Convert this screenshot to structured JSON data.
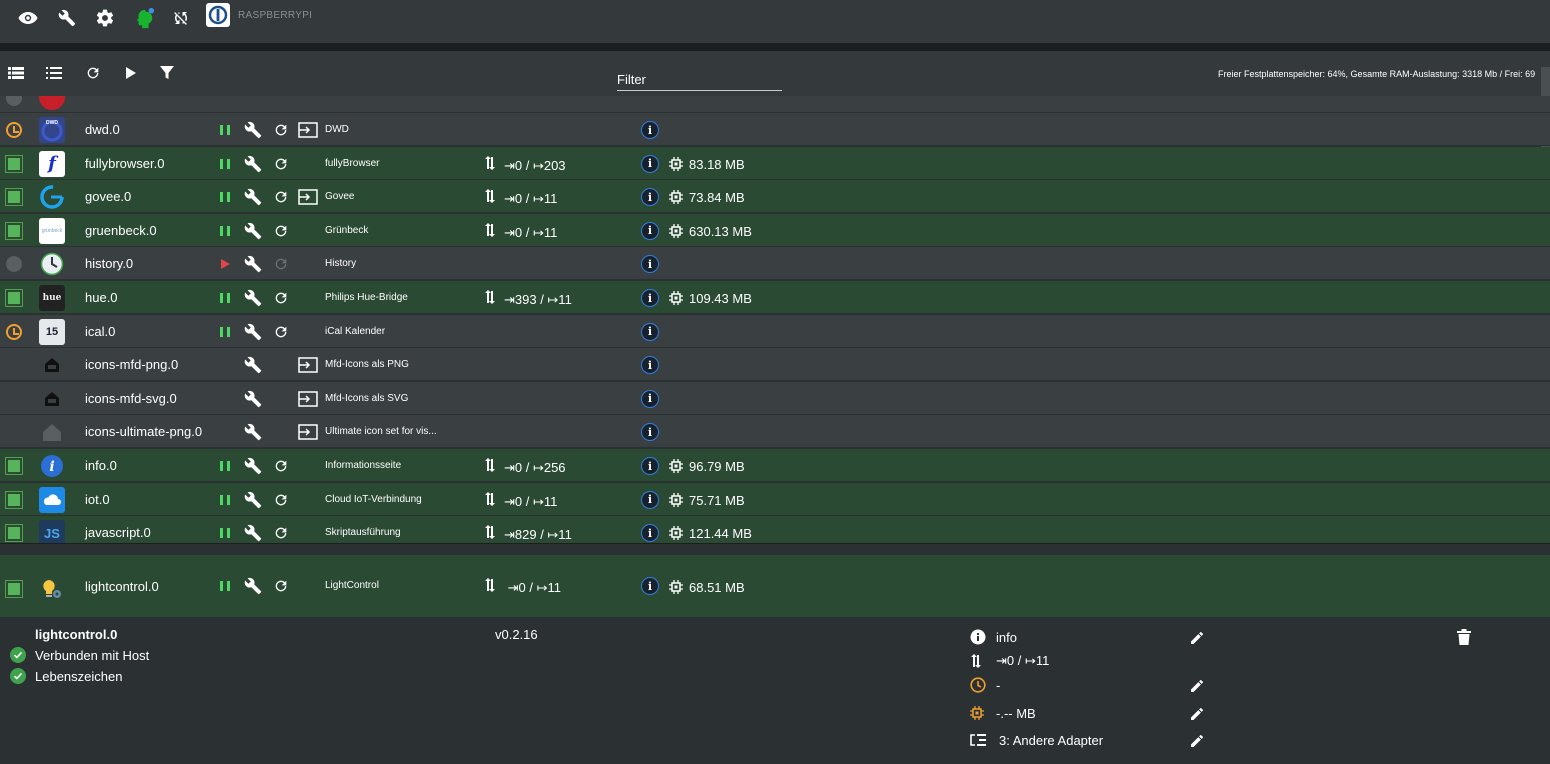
{
  "topbar": {
    "host_name": "RASPBERRYPI",
    "icons": [
      "eye-icon",
      "wrench-icon",
      "gear-icon",
      "head-icon",
      "sync-off-icon",
      "iobroker-logo"
    ]
  },
  "toolbar": {
    "icons": [
      "list-view-icon",
      "compact-list-icon",
      "refresh-icon",
      "play-icon",
      "filter-icon"
    ],
    "filter_label": "Filter",
    "filter_value": "",
    "sys_info": "Freier Festplattenspeicher: 64%, Gesamte RAM-Auslastung: 3318 Mb / Frei: 69"
  },
  "colors": {
    "running_row": "#2a4a33",
    "stopped_row": "#3a3f42",
    "accent_blue": "#2f7fe0",
    "status_orange": "#f0a030",
    "status_green": "#56b55a"
  },
  "adapters": [
    {
      "name": "dwd.0",
      "status": "clock",
      "state": "pause",
      "restart": true,
      "upload": true,
      "title": "DWD",
      "events": "",
      "mem": "",
      "row": "gray",
      "icon": "dwd"
    },
    {
      "name": "fullybrowser.0",
      "status": "run",
      "state": "pause",
      "restart": true,
      "upload": false,
      "title": "fullyBrowser",
      "events": "⇥0 / ↦203",
      "mem": "83.18 MB",
      "row": "green",
      "icon": "fully"
    },
    {
      "name": "govee.0",
      "status": "run",
      "state": "pause",
      "restart": true,
      "upload": true,
      "title": "Govee",
      "events": "⇥0 / ↦11",
      "mem": "73.84 MB",
      "row": "green",
      "icon": "govee"
    },
    {
      "name": "gruenbeck.0",
      "status": "run",
      "state": "pause",
      "restart": true,
      "upload": false,
      "title": "Grünbeck",
      "events": "⇥0 / ↦11",
      "mem": "630.13 MB",
      "row": "green",
      "icon": "gruenbeck"
    },
    {
      "name": "history.0",
      "status": "stop",
      "state": "play",
      "restart": true,
      "upload": false,
      "title": "History",
      "events": "",
      "mem": "",
      "row": "gray",
      "icon": "history"
    },
    {
      "name": "hue.0",
      "status": "run",
      "state": "pause",
      "restart": true,
      "upload": false,
      "title": "Philips Hue-Bridge",
      "events": "⇥393 / ↦11",
      "mem": "109.43 MB",
      "row": "green",
      "icon": "hue"
    },
    {
      "name": "ical.0",
      "status": "clock",
      "state": "pause",
      "restart": true,
      "upload": false,
      "title": "iCal Kalender",
      "events": "",
      "mem": "",
      "row": "gray",
      "icon": "ical"
    },
    {
      "name": "icons-mfd-png.0",
      "status": "none",
      "state": "none",
      "restart": false,
      "upload": true,
      "title": "Mfd-Icons als PNG",
      "events": "",
      "mem": "",
      "row": "gray",
      "icon": "house"
    },
    {
      "name": "icons-mfd-svg.0",
      "status": "none",
      "state": "none",
      "restart": false,
      "upload": true,
      "title": "Mfd-Icons als SVG",
      "events": "",
      "mem": "",
      "row": "gray",
      "icon": "house"
    },
    {
      "name": "icons-ultimate-png.0",
      "status": "none",
      "state": "none",
      "restart": false,
      "upload": true,
      "title": "Ultimate icon set for vis...",
      "events": "",
      "mem": "",
      "row": "gray",
      "icon": "house2"
    },
    {
      "name": "info.0",
      "status": "run",
      "state": "pause",
      "restart": true,
      "upload": false,
      "title": "Informationsseite",
      "events": "⇥0 / ↦256",
      "mem": "96.79 MB",
      "row": "green",
      "icon": "info"
    },
    {
      "name": "iot.0",
      "status": "run",
      "state": "pause",
      "restart": true,
      "upload": false,
      "title": "Cloud IoT-Verbindung",
      "events": "⇥0 / ↦11",
      "mem": "75.71 MB",
      "row": "green",
      "icon": "iot"
    },
    {
      "name": "javascript.0",
      "status": "run",
      "state": "pause",
      "restart": true,
      "upload": false,
      "title": "Skriptausführung",
      "events": "⇥829 / ↦11",
      "mem": "121.44 MB",
      "row": "green",
      "icon": "js"
    }
  ],
  "selected": {
    "name": "lightcontrol.0",
    "title": "LightControl",
    "events": "⇥0 / ↦11",
    "mem": "68.51 MB"
  },
  "detail": {
    "name": "lightcontrol.0",
    "connected": "Verbunden mit Host",
    "alive": "Lebenszeichen",
    "version": "v0.2.16",
    "loglevel": "info",
    "events": "⇥0 / ↦11",
    "schedule": "-",
    "memory_limit": "-.-- MB",
    "tier": "3: Andere Adapter"
  }
}
